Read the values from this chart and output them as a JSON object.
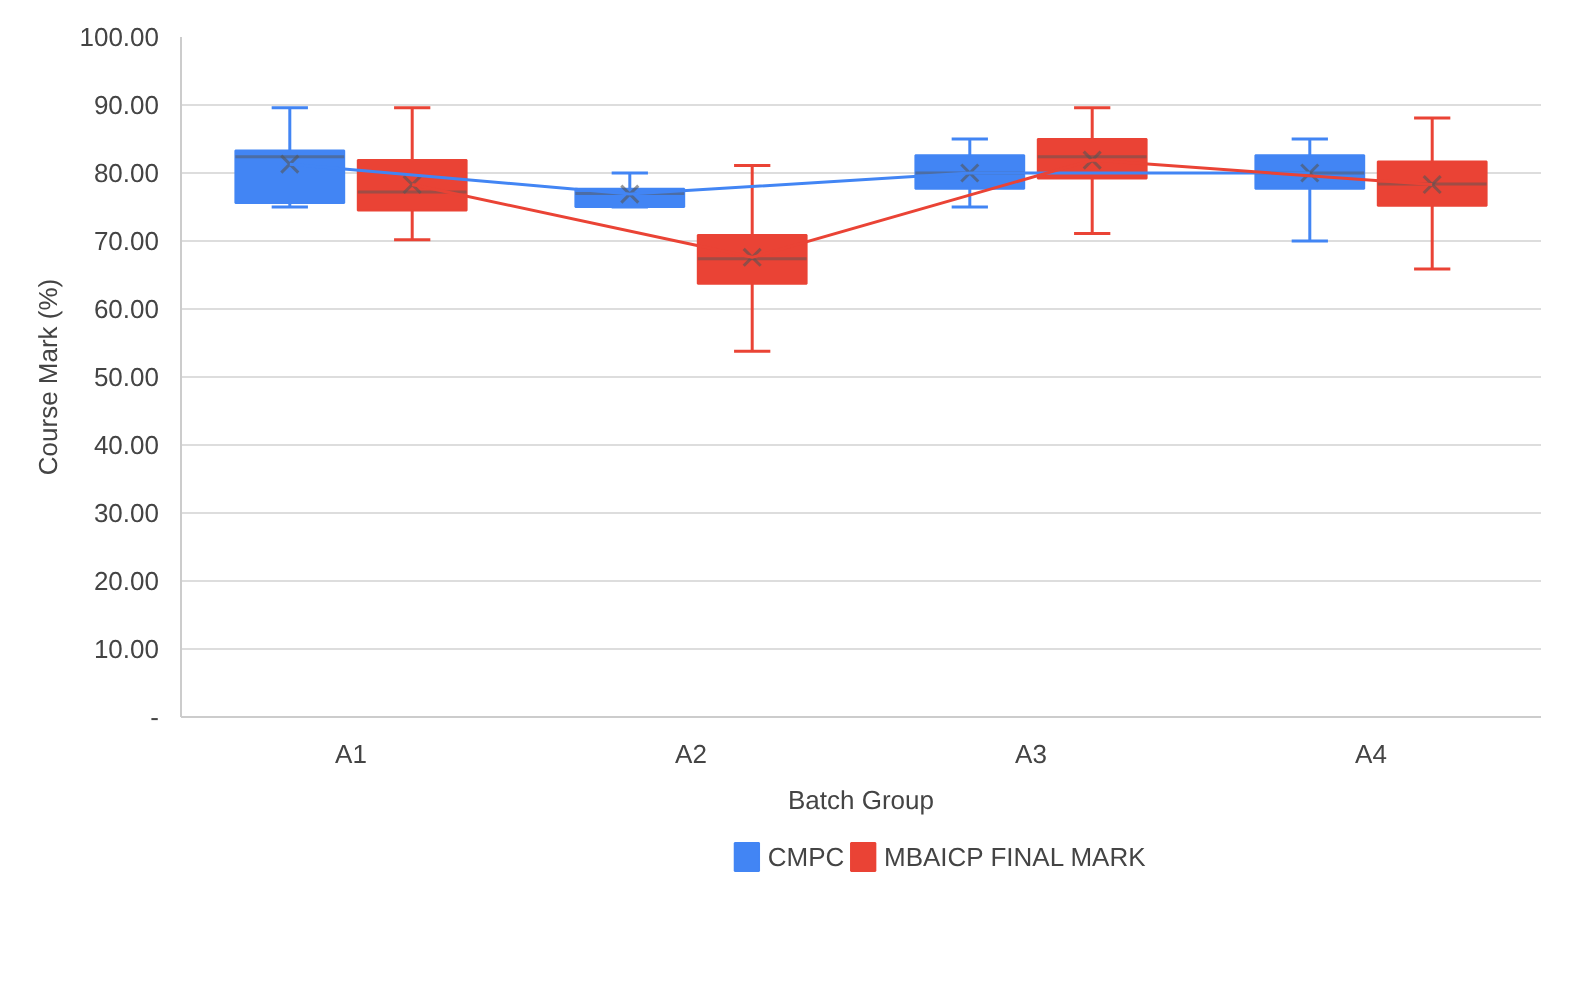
{
  "chart_data": {
    "type": "box",
    "xlabel": "Batch Group",
    "ylabel": "Course Mark (%)",
    "categories": [
      "A1",
      "A2",
      "A3",
      "A4"
    ],
    "ylim": [
      0,
      100
    ],
    "yticks": [
      {
        "value": 0,
        "label": "-"
      },
      {
        "value": 10,
        "label": "10.00"
      },
      {
        "value": 20,
        "label": "20.00"
      },
      {
        "value": 30,
        "label": "30.00"
      },
      {
        "value": 40,
        "label": "40.00"
      },
      {
        "value": 50,
        "label": "50.00"
      },
      {
        "value": 60,
        "label": "60.00"
      },
      {
        "value": 70,
        "label": "70.00"
      },
      {
        "value": 80,
        "label": "80.00"
      },
      {
        "value": 90,
        "label": "90.00"
      },
      {
        "value": 100,
        "label": "100.00"
      }
    ],
    "grid": "y",
    "legend": "bottom",
    "marker": "cross",
    "series": [
      {
        "name": "CMPC",
        "color": "#4285f4",
        "boxes": [
          {
            "low": 75.0,
            "q1": 75.6,
            "median": 82.4,
            "q3": 83.3,
            "high": 89.6,
            "mean": 81.3
          },
          {
            "low": 75.0,
            "q1": 75.0,
            "median": 77.0,
            "q3": 77.7,
            "high": 80.0,
            "mean": 76.9
          },
          {
            "low": 75.0,
            "q1": 77.7,
            "median": 80.0,
            "q3": 82.6,
            "high": 85.0,
            "mean": 80.0
          },
          {
            "low": 70.0,
            "q1": 77.7,
            "median": 80.0,
            "q3": 82.6,
            "high": 85.0,
            "mean": 80.0
          }
        ]
      },
      {
        "name": "MBAICP FINAL MARK",
        "color": "#ea4335",
        "boxes": [
          {
            "low": 70.2,
            "q1": 74.5,
            "median": 77.2,
            "q3": 81.9,
            "high": 89.6,
            "mean": 78.3
          },
          {
            "low": 53.8,
            "q1": 63.7,
            "median": 67.4,
            "q3": 70.9,
            "high": 81.1,
            "mean": 67.6
          },
          {
            "low": 71.1,
            "q1": 79.2,
            "median": 82.4,
            "q3": 85.0,
            "high": 89.6,
            "mean": 81.9
          },
          {
            "low": 65.9,
            "q1": 75.2,
            "median": 78.4,
            "q3": 81.7,
            "high": 88.1,
            "mean": 78.3
          }
        ]
      },
      {
        "type": "line",
        "color": "#4285f4",
        "marker": "none",
        "values": [
          81.3,
          76.9,
          80.0,
          80.0
        ]
      },
      {
        "type": "line",
        "color": "#ea4335",
        "marker": "none",
        "values": [
          78.3,
          67.6,
          81.9,
          78.3
        ]
      }
    ]
  }
}
